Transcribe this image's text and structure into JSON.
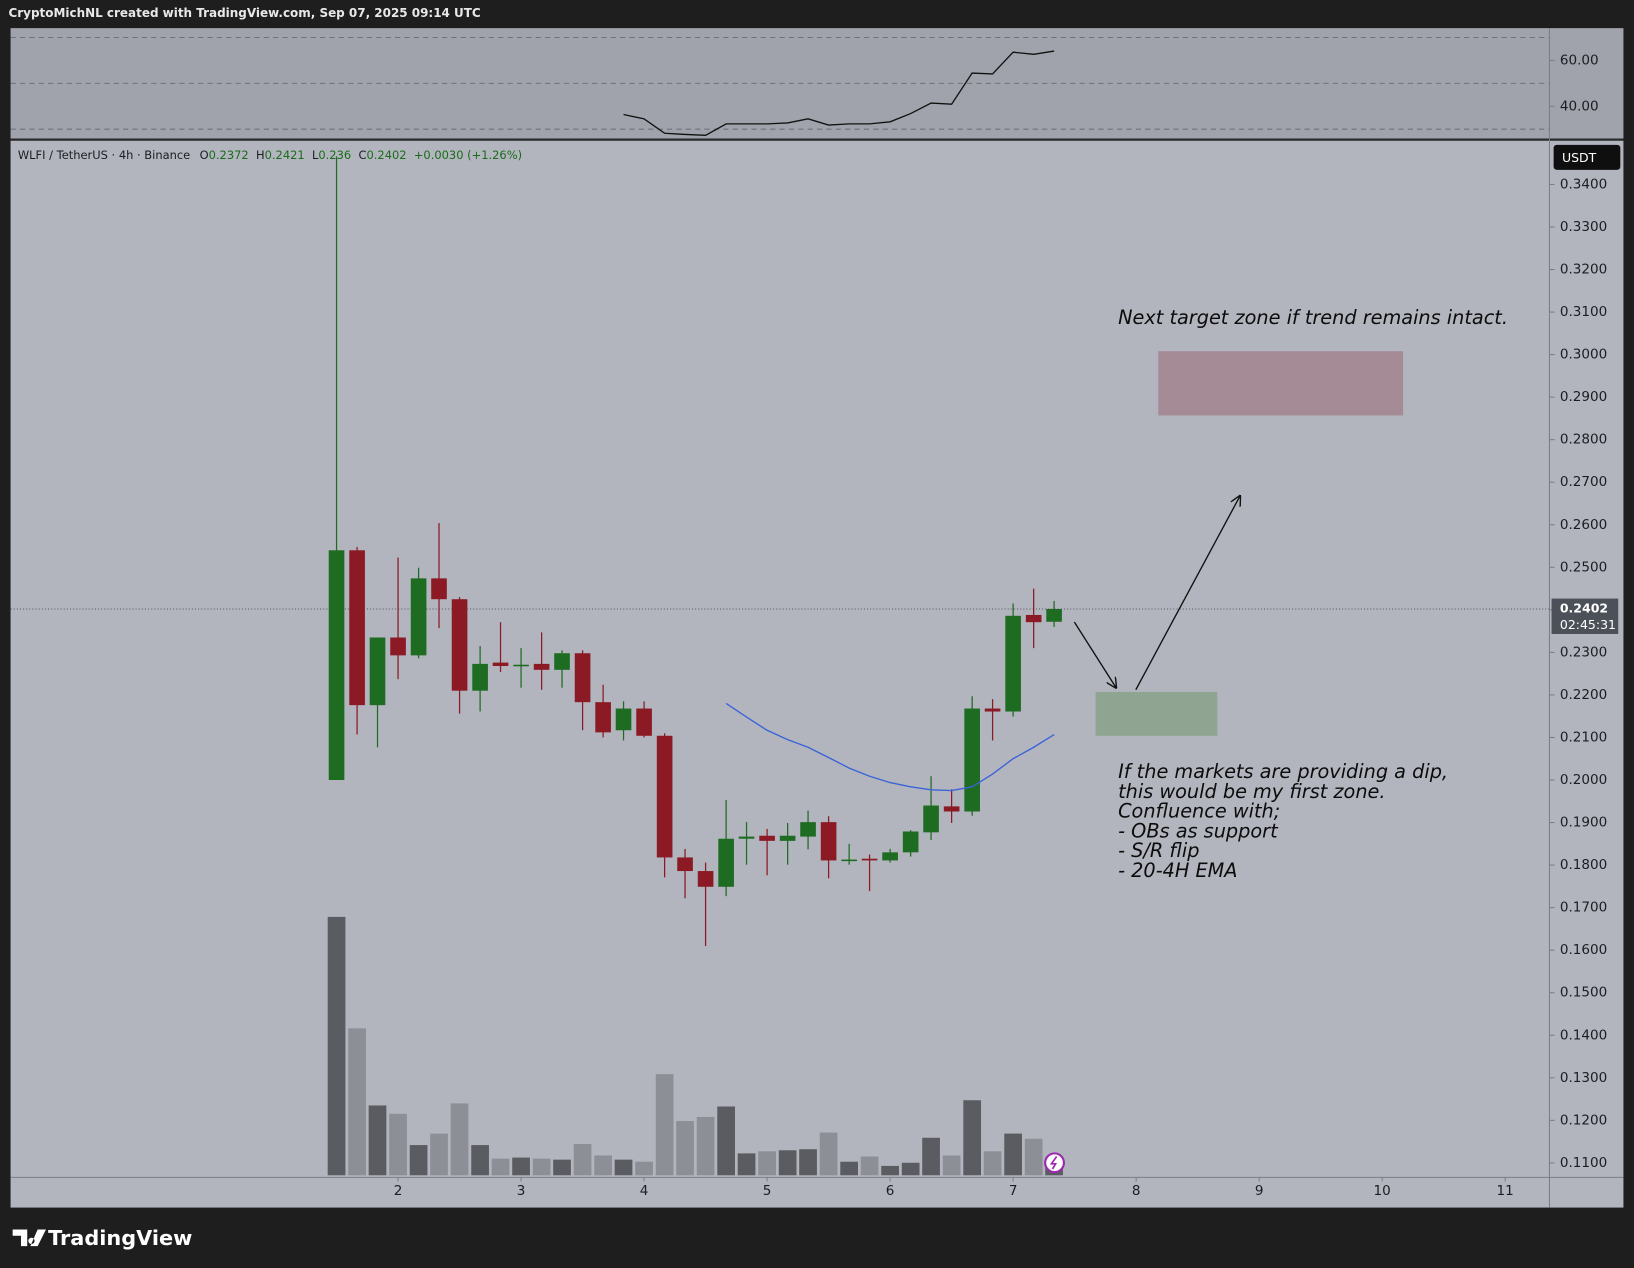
{
  "attribution": "CryptoMichNL created with TradingView.com, Sep 07, 2025 09:14 UTC",
  "brand": "TradingView",
  "chart_data": {
    "type": "candlestick",
    "symbol": "WLFI / TetherUS · 4h · Binance",
    "ohlc_legend": [
      {
        "label": "O",
        "value": 0.2372
      },
      {
        "label": "H",
        "value": 0.2421
      },
      {
        "label": "L",
        "value": 0.236
      },
      {
        "label": "C",
        "value": 0.2402
      }
    ],
    "change": "+0.0030 (+1.26%)",
    "currency": "USDT",
    "countdown": "02:45:31",
    "up_color": "#1e6b22",
    "down_color": "#8b1a24",
    "volume_up_color": "#5b5c62",
    "volume_down_color": "#8d8f97",
    "ema_color": "#3b63d9",
    "x": [
      1.5,
      1.667,
      1.833,
      2,
      2.167,
      2.333,
      2.5,
      2.667,
      2.833,
      3,
      3.167,
      3.333,
      3.5,
      3.667,
      3.833,
      4,
      4.167,
      4.333,
      4.5,
      4.667,
      4.833,
      5,
      5.167,
      5.333,
      5.5,
      5.667,
      5.833,
      6,
      6.167,
      6.333,
      6.5,
      6.667,
      6.833,
      7,
      7.167,
      7.333
    ],
    "open": [
      0.2,
      0.254,
      0.2176,
      0.2335,
      0.2293,
      0.2474,
      0.2425,
      0.221,
      0.2276,
      0.2271,
      0.2273,
      0.2259,
      0.2298,
      0.2183,
      0.2117,
      0.2168,
      0.2104,
      0.1818,
      0.1786,
      0.1749,
      0.1862,
      0.1869,
      0.1857,
      0.1867,
      0.1901,
      0.1811,
      0.1815,
      0.1811,
      0.183,
      0.1877,
      0.1938,
      0.1926,
      0.2168,
      0.2161,
      0.2388,
      0.2372
    ],
    "high": [
      0.3466,
      0.2548,
      0.2335,
      0.2523,
      0.2499,
      0.2604,
      0.243,
      0.2315,
      0.2371,
      0.231,
      0.2347,
      0.2305,
      0.2305,
      0.2224,
      0.2185,
      0.2185,
      0.211,
      0.1838,
      0.1806,
      0.1953,
      0.1901,
      0.1885,
      0.1899,
      0.1928,
      0.1915,
      0.185,
      0.1825,
      0.1838,
      0.1882,
      0.2009,
      0.1978,
      0.2197,
      0.219,
      0.2415,
      0.245,
      0.2421
    ],
    "low": [
      0.2,
      0.2107,
      0.2077,
      0.2237,
      0.2286,
      0.2357,
      0.2156,
      0.2161,
      0.2254,
      0.2217,
      0.2212,
      0.2217,
      0.2117,
      0.21,
      0.2093,
      0.21,
      0.1771,
      0.1722,
      0.161,
      0.1727,
      0.1801,
      0.1776,
      0.1801,
      0.1837,
      0.1769,
      0.1801,
      0.1739,
      0.1806,
      0.182,
      0.1859,
      0.1899,
      0.1916,
      0.2093,
      0.2149,
      0.231,
      0.236
    ],
    "close": [
      0.254,
      0.2176,
      0.2335,
      0.2293,
      0.2474,
      0.2425,
      0.221,
      0.2273,
      0.2268,
      0.2271,
      0.2259,
      0.2298,
      0.2183,
      0.2112,
      0.2168,
      0.2104,
      0.1818,
      0.1786,
      0.1749,
      0.1862,
      0.1867,
      0.1857,
      0.1869,
      0.1901,
      0.1811,
      0.1813,
      0.1811,
      0.183,
      0.1879,
      0.194,
      0.1926,
      0.2168,
      0.2161,
      0.2386,
      0.2371,
      0.2402
    ],
    "volume": [
      248,
      141,
      67,
      59,
      29,
      40,
      69,
      29,
      16,
      17,
      16,
      15,
      30,
      19,
      15,
      13,
      97,
      52,
      56,
      66,
      21,
      23,
      24,
      25,
      41,
      13,
      18,
      9,
      12,
      36,
      19,
      72,
      23,
      40,
      35,
      12
    ],
    "ema": [
      null,
      null,
      null,
      null,
      null,
      null,
      null,
      null,
      null,
      null,
      null,
      null,
      null,
      null,
      null,
      null,
      null,
      null,
      null,
      0.218,
      0.2148,
      0.2117,
      0.2095,
      0.2077,
      0.2053,
      0.2028,
      0.2009,
      0.1994,
      0.1984,
      0.1977,
      0.1975,
      0.1984,
      0.2014,
      0.205,
      0.2077,
      0.2107
    ],
    "xlim": [
      -1.15,
      11.36
    ],
    "xticks": [
      2,
      3,
      4,
      5,
      6,
      7,
      8,
      9,
      10,
      11
    ],
    "ylim": [
      0.1066,
      0.3498
    ],
    "yticks": [
      {
        "value": 0.34,
        "label": "0.3400"
      },
      {
        "value": 0.33,
        "label": "0.3300"
      },
      {
        "value": 0.32,
        "label": "0.3200"
      },
      {
        "value": 0.31,
        "label": "0.3100"
      },
      {
        "value": 0.3,
        "label": "0.3000"
      },
      {
        "value": 0.29,
        "label": "0.2900"
      },
      {
        "value": 0.28,
        "label": "0.2800"
      },
      {
        "value": 0.27,
        "label": "0.2700"
      },
      {
        "value": 0.26,
        "label": "0.2600"
      },
      {
        "value": 0.25,
        "label": "0.2500"
      },
      {
        "value": 0.24,
        "label": "0.2400"
      },
      {
        "value": 0.23,
        "label": "0.2300"
      },
      {
        "value": 0.22,
        "label": "0.2200"
      },
      {
        "value": 0.21,
        "label": "0.2100"
      },
      {
        "value": 0.2,
        "label": "0.2000"
      },
      {
        "value": 0.19,
        "label": "0.1900"
      },
      {
        "value": 0.18,
        "label": "0.1800"
      },
      {
        "value": 0.17,
        "label": "0.1700"
      },
      {
        "value": 0.16,
        "label": "0.1600"
      },
      {
        "value": 0.15,
        "label": "0.1500"
      },
      {
        "value": 0.14,
        "label": "0.1400"
      },
      {
        "value": 0.13,
        "label": "0.1300"
      },
      {
        "value": 0.12,
        "label": "0.1200"
      },
      {
        "value": 0.11,
        "label": "0.1100"
      }
    ],
    "zones": [
      {
        "color": "#a48b95",
        "y": [
          0.2857,
          0.3008
        ],
        "x": [
          8.18,
          10.17
        ]
      },
      {
        "color": "#8fa592",
        "y": [
          0.2104,
          0.2207
        ],
        "x": [
          7.67,
          8.66
        ]
      }
    ],
    "rsi": {
      "color": "#111111",
      "values": [
        null,
        null,
        null,
        null,
        null,
        null,
        null,
        null,
        null,
        null,
        null,
        null,
        null,
        null,
        36.4,
        34.5,
        28.2,
        27.7,
        27.3,
        32.3,
        32.3,
        32.3,
        32.7,
        34.5,
        31.8,
        32.3,
        32.3,
        33.2,
        36.8,
        41.4,
        40.9,
        54.5,
        54.1,
        63.6,
        62.7,
        64.1
      ],
      "ylim": [
        25.9,
        74.1
      ],
      "yticks": [
        {
          "value": 60,
          "label": "60.00"
        },
        {
          "value": 40,
          "label": "40.00"
        }
      ],
      "levels": [
        70,
        50,
        30
      ]
    },
    "annotations": [
      {
        "lines": [
          "Next target zone if trend remains intact."
        ]
      },
      {
        "lines": [
          "If the markets are providing a dip,",
          "this would be my first zone.",
          "Confluence with;",
          "- OBs as support",
          "- S/R flip",
          "- 20-4H EMA"
        ]
      }
    ]
  }
}
